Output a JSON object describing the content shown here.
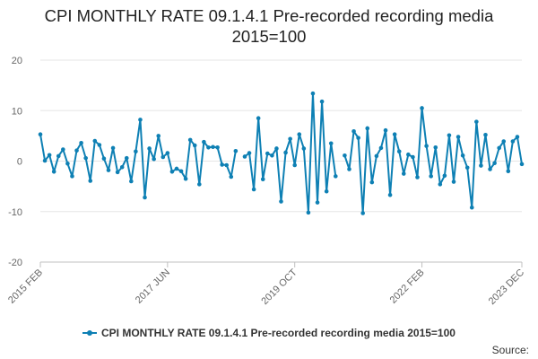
{
  "chart_data": {
    "type": "line",
    "title_line1": "CPI MONTHLY RATE 09.1.4.1 Pre-recorded recording media",
    "title_line2": "2015=100",
    "xlabel": "",
    "ylabel": "",
    "ylim": [
      -20,
      20
    ],
    "yticks": [
      "20",
      "10",
      "0",
      "-10",
      "-20"
    ],
    "xticks": [
      "2015 FEB",
      "2017 JUN",
      "2019 OCT",
      "2022 FEB",
      "2023 DEC"
    ],
    "grid": true,
    "legend_position": "bottom",
    "source_label": "Source:",
    "color": "#0e80b4",
    "series": [
      {
        "name": "CPI MONTHLY RATE 09.1.4.1 Pre-recorded recording media 2015=100",
        "start": "2015-02",
        "values": [
          5.3,
          0.1,
          1.2,
          -2.1,
          1.0,
          2.3,
          -0.5,
          -3.0,
          2.1,
          3.6,
          0.6,
          -3.9,
          4.0,
          3.2,
          0.5,
          -1.8,
          2.6,
          -2.2,
          -1.2,
          0.6,
          -4.0,
          1.9,
          8.2,
          -7.2,
          2.5,
          0.4,
          5.0,
          0.8,
          1.6,
          -2.1,
          -1.5,
          -2.0,
          -3.5,
          4.2,
          3.1,
          -4.6,
          3.8,
          2.7,
          2.8,
          2.7,
          -0.7,
          -0.8,
          -3.1,
          2.0,
          null,
          0.9,
          1.6,
          -5.6,
          8.5,
          -3.6,
          1.5,
          1.1,
          2.5,
          -8.0,
          1.7,
          4.4,
          -0.8,
          5.3,
          2.5,
          -10.2,
          13.4,
          -8.2,
          11.8,
          -6.0,
          3.5,
          -3.0,
          null,
          1.1,
          -1.6,
          5.9,
          4.6,
          -10.3,
          6.5,
          -4.2,
          1.0,
          2.6,
          6.1,
          -6.7,
          5.3,
          1.9,
          -2.5,
          1.3,
          0.8,
          -3.2,
          10.5,
          3.0,
          -3.0,
          2.7,
          -4.6,
          -2.9,
          5.1,
          -4.1,
          4.8,
          1.1,
          -1.3,
          -9.2,
          7.8,
          -0.9,
          5.2,
          -1.6,
          -0.4,
          2.6,
          3.9,
          -2.0,
          3.9,
          4.8,
          -0.6
        ]
      }
    ]
  }
}
